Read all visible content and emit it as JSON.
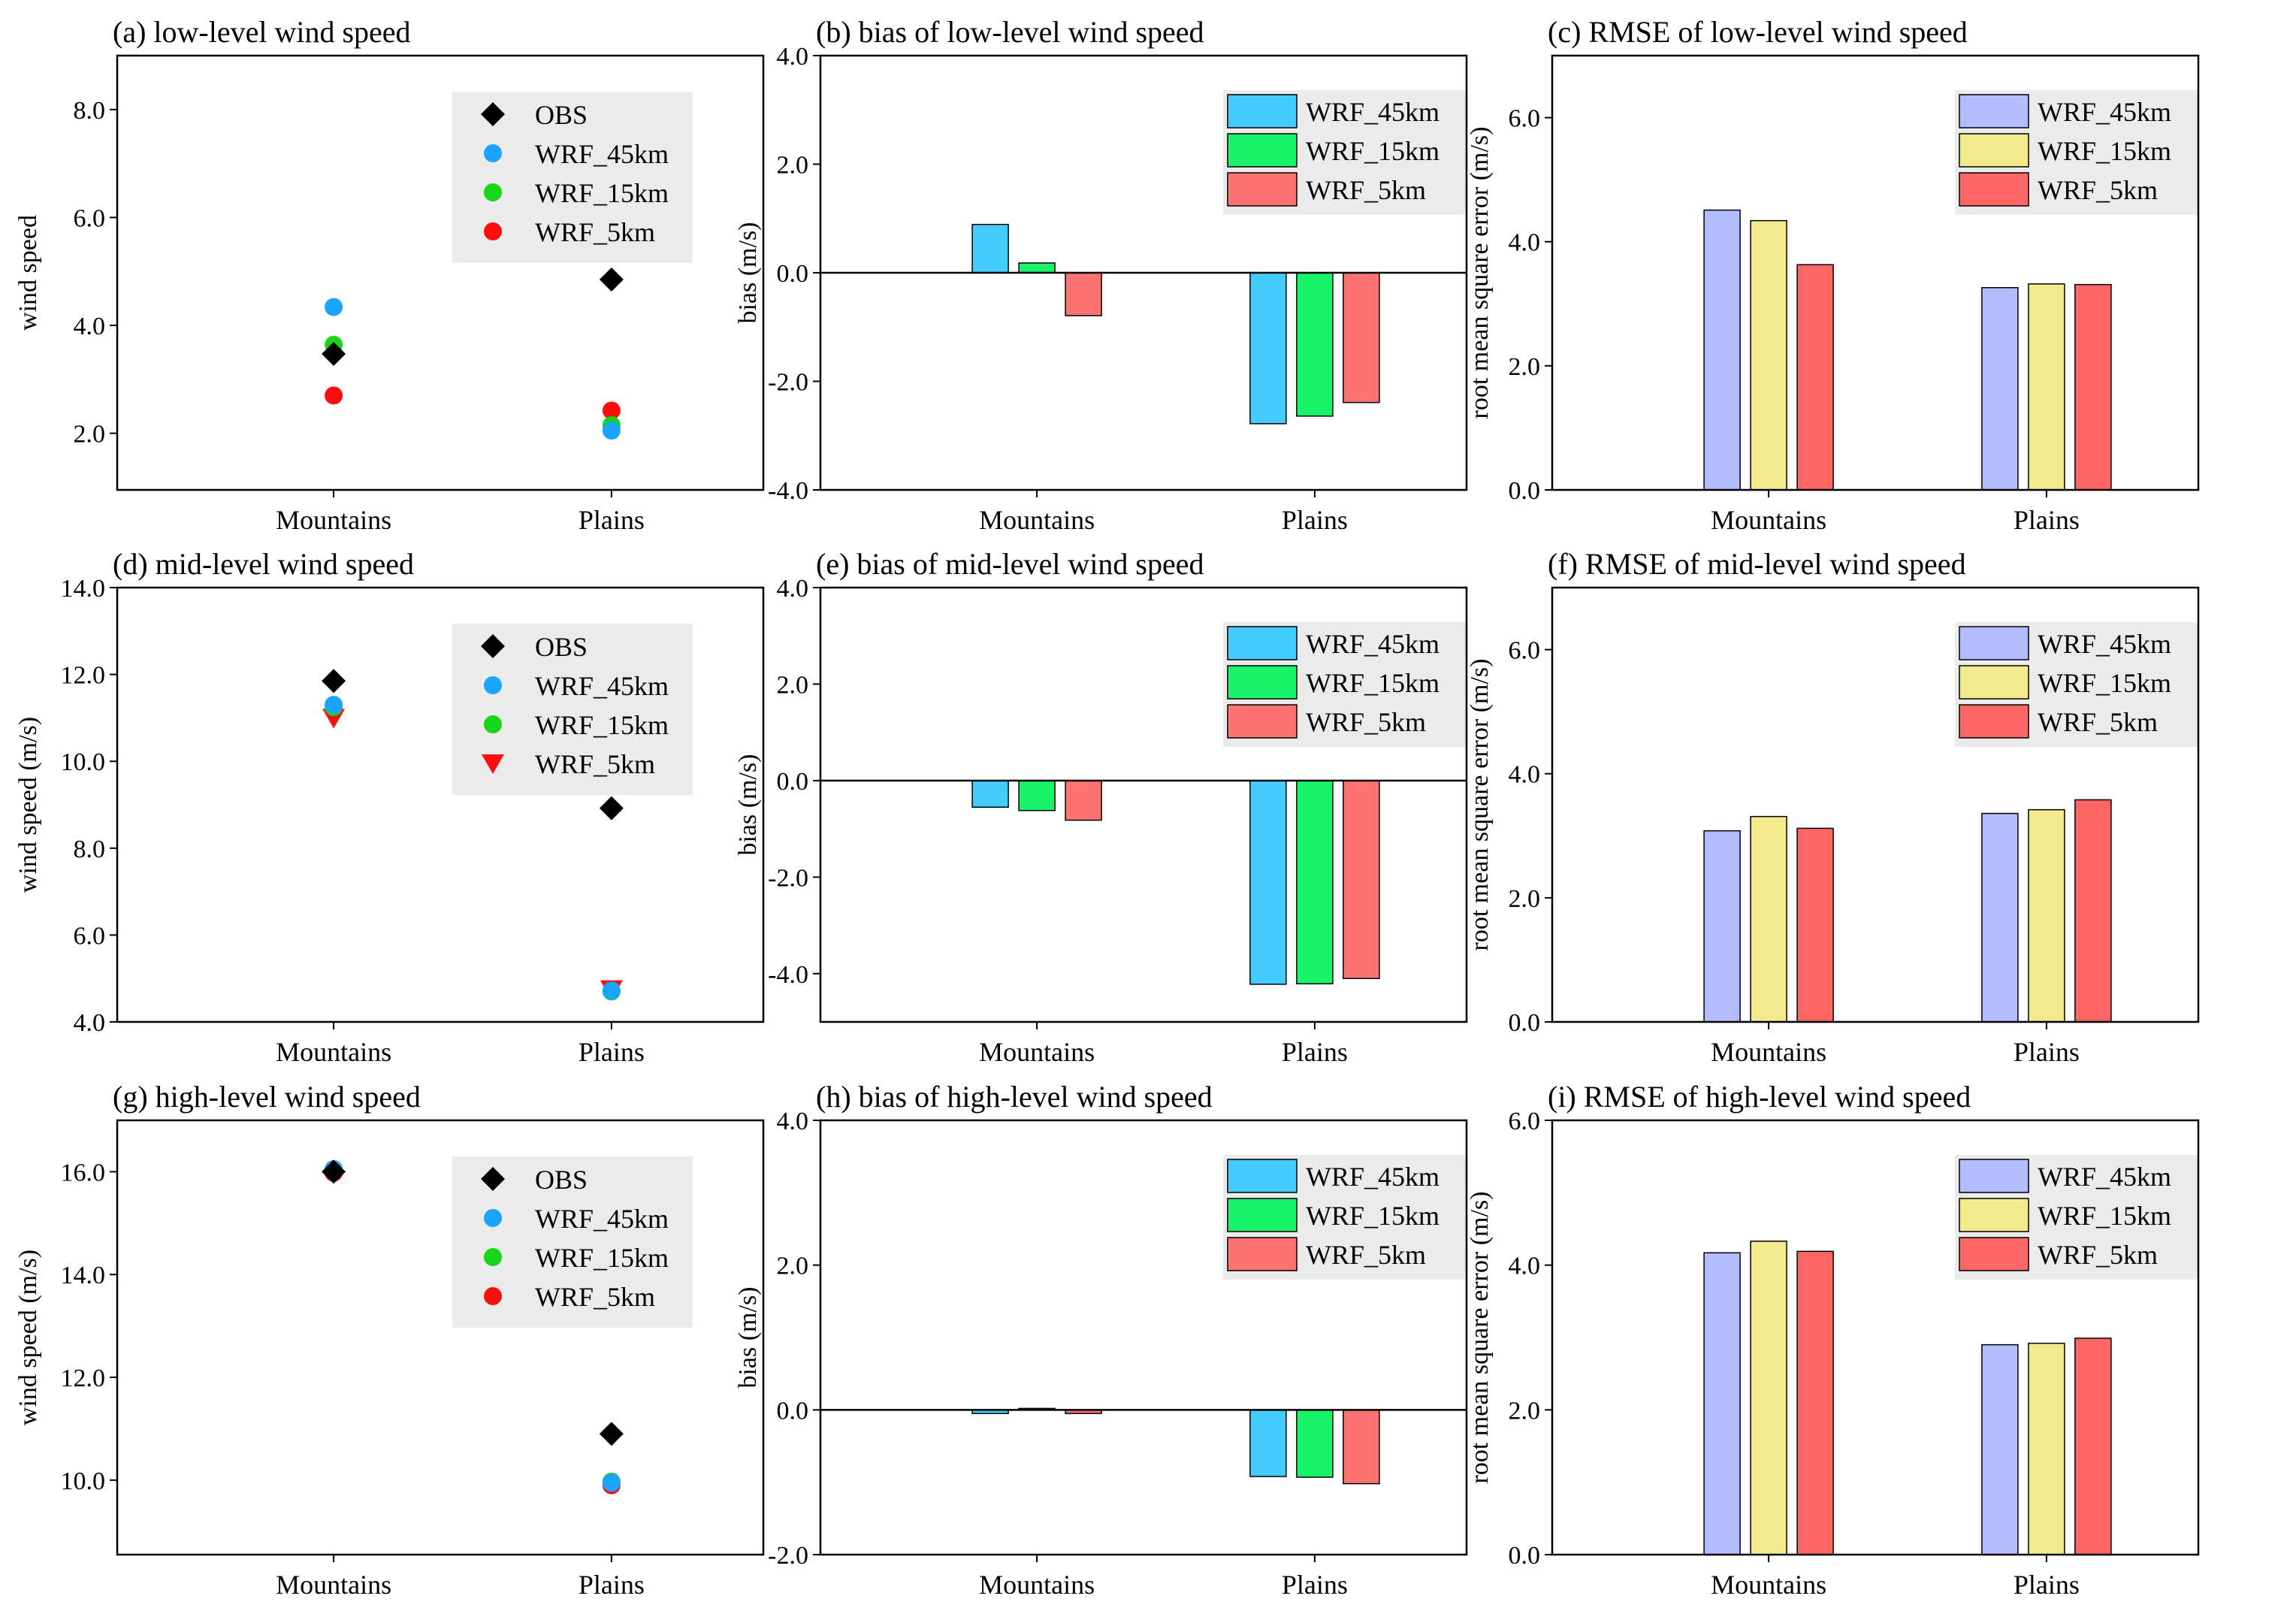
{
  "colors": {
    "obs": "#000000",
    "wrf45_point": "#1aa3ff",
    "wrf15_point": "#19d419",
    "wrf5_point": "#ff0d0d",
    "bias45": "#45ccff",
    "bias15": "#19f26b",
    "bias5": "#ff7373",
    "rmse45": "#b3bcff",
    "rmse15": "#f2ea8c",
    "rmse5": "#ff6666",
    "legend_bg": "#ebebeb"
  },
  "chart_data": [
    {
      "id": "a",
      "type": "scatter",
      "title": "(a) low-level wind speed",
      "ylabel": "wind speed",
      "xlabel": "",
      "categories": [
        "Mountains",
        "Plains"
      ],
      "ylim": [
        0.95,
        9.0
      ],
      "yticks": [
        2.0,
        4.0,
        6.0,
        8.0
      ],
      "tick_labels": [
        "2.0",
        "4.0",
        "6.0",
        "8.0"
      ],
      "legend": {
        "position": "top-right",
        "entries": [
          "OBS",
          "WRF_45km",
          "WRF_15km",
          "WRF_5km"
        ]
      },
      "series": [
        {
          "name": "OBS",
          "marker": "diamond",
          "color": "obs",
          "values": [
            3.47,
            4.85
          ]
        },
        {
          "name": "WRF_45km",
          "marker": "circle",
          "color": "wrf45_point",
          "values": [
            4.34,
            2.05
          ]
        },
        {
          "name": "WRF_15km",
          "marker": "circle",
          "color": "wrf15_point",
          "values": [
            3.64,
            2.15
          ]
        },
        {
          "name": "WRF_5km",
          "marker": "circle",
          "color": "wrf5_point",
          "values": [
            2.7,
            2.42
          ]
        }
      ]
    },
    {
      "id": "b",
      "type": "bar",
      "title": "(b) bias of low-level wind speed",
      "ylabel": "bias (m/s)",
      "xlabel": "",
      "categories": [
        "Mountains",
        "Plains"
      ],
      "ylim": [
        -4.0,
        4.0
      ],
      "yticks": [
        -4.0,
        -2.0,
        0.0,
        2.0,
        4.0
      ],
      "tick_labels": [
        "-4.0",
        "-2.0",
        "0.0",
        "2.0",
        "4.0"
      ],
      "zero_line": true,
      "legend": {
        "position": "top-right",
        "entries": [
          "WRF_45km",
          "WRF_15km",
          "WRF_5km"
        ]
      },
      "series": [
        {
          "name": "WRF_45km",
          "color": "bias45",
          "values": [
            0.89,
            -2.78
          ]
        },
        {
          "name": "WRF_15km",
          "color": "bias15",
          "values": [
            0.18,
            -2.64
          ]
        },
        {
          "name": "WRF_5km",
          "color": "bias5",
          "values": [
            -0.79,
            -2.39
          ]
        }
      ]
    },
    {
      "id": "c",
      "type": "bar",
      "title": "(c) RMSE of low-level wind speed",
      "ylabel": "root mean square error (m/s)",
      "xlabel": "",
      "categories": [
        "Mountains",
        "Plains"
      ],
      "ylim": [
        0.0,
        7.0
      ],
      "yticks": [
        0.0,
        2.0,
        4.0,
        6.0
      ],
      "tick_labels": [
        "0.0",
        "2.0",
        "4.0",
        "6.0"
      ],
      "legend": {
        "position": "top-right",
        "entries": [
          "WRF_45km",
          "WRF_15km",
          "WRF_5km"
        ]
      },
      "series": [
        {
          "name": "WRF_45km",
          "color": "rmse45",
          "values": [
            4.51,
            3.26
          ]
        },
        {
          "name": "WRF_15km",
          "color": "rmse15",
          "values": [
            4.34,
            3.32
          ]
        },
        {
          "name": "WRF_5km",
          "color": "rmse5",
          "values": [
            3.63,
            3.31
          ]
        }
      ]
    },
    {
      "id": "d",
      "type": "scatter",
      "title": "(d) mid-level wind speed",
      "ylabel": "wind speed (m/s)",
      "xlabel": "",
      "categories": [
        "Mountains",
        "Plains"
      ],
      "ylim": [
        4.0,
        14.0
      ],
      "yticks": [
        4.0,
        6.0,
        8.0,
        10.0,
        12.0,
        14.0
      ],
      "tick_labels": [
        "4.0",
        "6.0",
        "8.0",
        "10.0",
        "12.0",
        "14.0"
      ],
      "legend": {
        "position": "top-right",
        "entries": [
          "OBS",
          "WRF_45km",
          "WRF_15km",
          "WRF_5km"
        ]
      },
      "series": [
        {
          "name": "OBS",
          "marker": "diamond",
          "color": "obs",
          "values": [
            11.85,
            8.92
          ]
        },
        {
          "name": "WRF_45km",
          "marker": "circle",
          "color": "wrf45_point",
          "values": [
            11.3,
            4.72
          ]
        },
        {
          "name": "WRF_15km",
          "marker": "circle",
          "color": "wrf15_point",
          "values": [
            11.25,
            4.7
          ]
        },
        {
          "name": "WRF_5km",
          "marker": "triangle-down",
          "color": "wrf5_point",
          "values": [
            11.0,
            4.75
          ]
        }
      ]
    },
    {
      "id": "e",
      "type": "bar",
      "title": "(e) bias of mid-level wind speed",
      "ylabel": "bias (m/s)",
      "xlabel": "",
      "categories": [
        "Mountains",
        "Plains"
      ],
      "ylim": [
        -5.0,
        4.0
      ],
      "yticks": [
        -4.0,
        -2.0,
        0.0,
        2.0,
        4.0
      ],
      "tick_labels": [
        "-4.0",
        "-2.0",
        "0.0",
        "2.0",
        "4.0"
      ],
      "zero_line": true,
      "legend": {
        "position": "top-right",
        "entries": [
          "WRF_45km",
          "WRF_15km",
          "WRF_5km"
        ]
      },
      "series": [
        {
          "name": "WRF_45km",
          "color": "bias45",
          "values": [
            -0.55,
            -4.22
          ]
        },
        {
          "name": "WRF_15km",
          "color": "bias15",
          "values": [
            -0.62,
            -4.21
          ]
        },
        {
          "name": "WRF_5km",
          "color": "bias5",
          "values": [
            -0.82,
            -4.1
          ]
        }
      ]
    },
    {
      "id": "f",
      "type": "bar",
      "title": "(f) RMSE of mid-level wind speed",
      "ylabel": "root mean square error (m/s)",
      "xlabel": "",
      "categories": [
        "Mountains",
        "Plains"
      ],
      "ylim": [
        0.0,
        7.0
      ],
      "yticks": [
        0.0,
        2.0,
        4.0,
        6.0
      ],
      "tick_labels": [
        "0.0",
        "2.0",
        "4.0",
        "6.0"
      ],
      "legend": {
        "position": "top-right",
        "entries": [
          "WRF_45km",
          "WRF_15km",
          "WRF_5km"
        ]
      },
      "series": [
        {
          "name": "WRF_45km",
          "color": "rmse45",
          "values": [
            3.08,
            3.36
          ]
        },
        {
          "name": "WRF_15km",
          "color": "rmse15",
          "values": [
            3.31,
            3.42
          ]
        },
        {
          "name": "WRF_5km",
          "color": "rmse5",
          "values": [
            3.12,
            3.58
          ]
        }
      ]
    },
    {
      "id": "g",
      "type": "scatter",
      "title": "(g) high-level wind speed",
      "ylabel": "wind speed (m/s)",
      "xlabel": "",
      "categories": [
        "Mountains",
        "Plains"
      ],
      "ylim": [
        8.55,
        17.0
      ],
      "yticks": [
        10.0,
        12.0,
        14.0,
        16.0
      ],
      "tick_labels": [
        "10.0",
        "12.0",
        "14.0",
        "16.0"
      ],
      "legend": {
        "position": "top-right",
        "entries": [
          "OBS",
          "WRF_45km",
          "WRF_15km",
          "WRF_5km"
        ]
      },
      "series": [
        {
          "name": "OBS",
          "marker": "diamond",
          "color": "obs",
          "values": [
            16.0,
            10.9
          ]
        },
        {
          "name": "WRF_45km",
          "marker": "circle",
          "color": "wrf45_point",
          "values": [
            16.05,
            9.95
          ]
        },
        {
          "name": "WRF_15km",
          "marker": "circle",
          "color": "wrf15_point",
          "values": [
            16.05,
            9.97
          ]
        },
        {
          "name": "WRF_5km",
          "marker": "circle",
          "color": "wrf5_point",
          "values": [
            15.98,
            9.9
          ]
        }
      ]
    },
    {
      "id": "h",
      "type": "bar",
      "title": "(h) bias of high-level wind speed",
      "ylabel": "bias (m/s)",
      "xlabel": "",
      "categories": [
        "Mountains",
        "Plains"
      ],
      "ylim": [
        -2.0,
        4.0
      ],
      "yticks": [
        -2.0,
        0.0,
        2.0,
        4.0
      ],
      "tick_labels": [
        "-2.0",
        "0.0",
        "2.0",
        "4.0"
      ],
      "zero_line": true,
      "legend": {
        "position": "top-right",
        "entries": [
          "WRF_45km",
          "WRF_15km",
          "WRF_5km"
        ]
      },
      "series": [
        {
          "name": "WRF_45km",
          "color": "bias45",
          "values": [
            -0.05,
            -0.92
          ]
        },
        {
          "name": "WRF_15km",
          "color": "bias15",
          "values": [
            0.02,
            -0.93
          ]
        },
        {
          "name": "WRF_5km",
          "color": "bias5",
          "values": [
            -0.05,
            -1.02
          ]
        }
      ]
    },
    {
      "id": "i",
      "type": "bar",
      "title": "(i) RMSE of high-level wind speed",
      "ylabel": "root mean square error (m/s)",
      "xlabel": "",
      "categories": [
        "Mountains",
        "Plains"
      ],
      "ylim": [
        0.0,
        6.0
      ],
      "yticks": [
        0.0,
        2.0,
        4.0,
        6.0
      ],
      "tick_labels": [
        "0.0",
        "2.0",
        "4.0",
        "6.0"
      ],
      "legend": {
        "position": "top-right",
        "entries": [
          "WRF_45km",
          "WRF_15km",
          "WRF_5km"
        ]
      },
      "series": [
        {
          "name": "WRF_45km",
          "color": "rmse45",
          "values": [
            4.17,
            2.9
          ]
        },
        {
          "name": "WRF_15km",
          "color": "rmse15",
          "values": [
            4.33,
            2.92
          ]
        },
        {
          "name": "WRF_5km",
          "color": "rmse5",
          "values": [
            4.19,
            2.99
          ]
        }
      ]
    }
  ]
}
